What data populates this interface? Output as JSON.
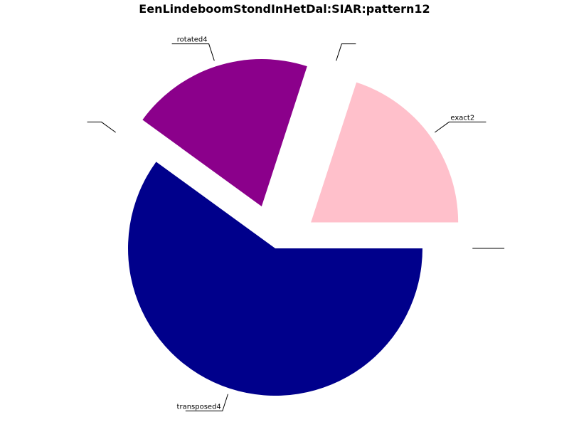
{
  "chart_data": {
    "type": "pie",
    "title": "EenLindeboomStondInHetDal:SIAR:pattern12",
    "start_angle_deg": 0,
    "direction": "counterclockwise",
    "slices": [
      {
        "label": "exact2",
        "value": 1,
        "color": "#ffc0cb",
        "exploded": true
      },
      {
        "label": "",
        "value": 0,
        "color": "#ffffff",
        "exploded": true
      },
      {
        "label": "rotated4",
        "value": 1,
        "color": "#8b008b",
        "exploded": true
      },
      {
        "label": "",
        "value": 0,
        "color": "#ffffff",
        "exploded": true
      },
      {
        "label": "transposed4",
        "value": 3,
        "color": "#00008b",
        "exploded": false
      },
      {
        "label": "",
        "value": 0,
        "color": "#ffffff",
        "exploded": true
      }
    ]
  }
}
